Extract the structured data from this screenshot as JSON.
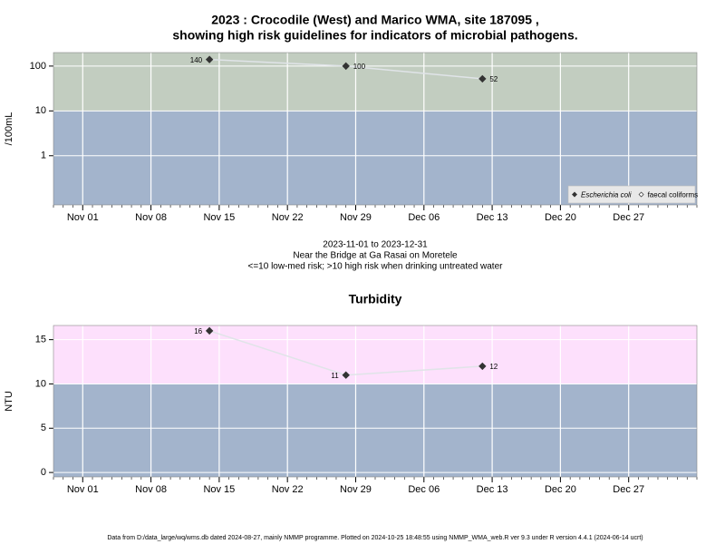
{
  "chart_data": [
    {
      "type": "line",
      "title": "2023 : Crocodile (West) and Marico WMA, site 187095 ,",
      "subtitle": "showing high risk guidelines for indicators of microbial pathogens.",
      "ylabel": "/100mL",
      "log_y": true,
      "grid": true,
      "x": [
        "2023-11-14",
        "2023-11-28",
        "2023-12-12"
      ],
      "xlim": [
        "2023-10-29",
        "2024-01-03"
      ],
      "xticks": [
        {
          "value": "2023-11-01",
          "label": "Nov 01"
        },
        {
          "value": "2023-11-08",
          "label": "Nov 08"
        },
        {
          "value": "2023-11-15",
          "label": "Nov 15"
        },
        {
          "value": "2023-11-22",
          "label": "Nov 22"
        },
        {
          "value": "2023-11-29",
          "label": "Nov 29"
        },
        {
          "value": "2023-12-06",
          "label": "Dec 06"
        },
        {
          "value": "2023-12-13",
          "label": "Dec 13"
        },
        {
          "value": "2023-12-20",
          "label": "Dec 20"
        },
        {
          "value": "2023-12-27",
          "label": "Dec 27"
        }
      ],
      "ylim": [
        0.08,
        200
      ],
      "yticks": [
        1,
        10,
        100
      ],
      "threshold": 10,
      "above_color": "#c2cdc0",
      "below_color": "#a3b4cc",
      "line_color": "#e0e4e8",
      "legend": "lower right",
      "series": [
        {
          "name": "Escherichia coli",
          "color": "#333333",
          "marker": "filled",
          "values": [
            140,
            100,
            52
          ]
        },
        {
          "name": "faecal coliforms",
          "color": "#333333",
          "marker": "open",
          "values": [
            null,
            null,
            null
          ]
        }
      ],
      "notes": [
        "2023-11-01 to 2023-12-31",
        "Near the Bridge at Ga Rasai on Moretele",
        "<=10 low-med risk; >10 high risk when drinking untreated water"
      ]
    },
    {
      "type": "line",
      "title": "Turbidity",
      "ylabel": "NTU",
      "log_y": false,
      "grid": true,
      "x": [
        "2023-11-14",
        "2023-11-28",
        "2023-12-12"
      ],
      "xlim": [
        "2023-10-29",
        "2024-01-03"
      ],
      "xticks": [
        {
          "value": "2023-11-01",
          "label": "Nov 01"
        },
        {
          "value": "2023-11-08",
          "label": "Nov 08"
        },
        {
          "value": "2023-11-15",
          "label": "Nov 15"
        },
        {
          "value": "2023-11-22",
          "label": "Nov 22"
        },
        {
          "value": "2023-11-29",
          "label": "Nov 29"
        },
        {
          "value": "2023-12-06",
          "label": "Dec 06"
        },
        {
          "value": "2023-12-13",
          "label": "Dec 13"
        },
        {
          "value": "2023-12-20",
          "label": "Dec 20"
        },
        {
          "value": "2023-12-27",
          "label": "Dec 27"
        }
      ],
      "ylim": [
        -0.5,
        16.6
      ],
      "yticks": [
        0,
        5,
        10,
        15
      ],
      "threshold": 10,
      "above_color": "#fde0fc",
      "below_color": "#a3b4cc",
      "line_color": "#e0e4e8",
      "series": [
        {
          "name": "Turbidity",
          "color": "#333333",
          "marker": "filled",
          "values": [
            16,
            11,
            12
          ]
        }
      ]
    }
  ],
  "footer": "Data from D:/data_large/wq/wms.db dated 2024-08-27, mainly NMMP programme. Plotted on 2024-10-25 18:48:55 using NMMP_WMA_web.R ver 9.3 under R version 4.4.1 (2024-06-14 ucrt)"
}
